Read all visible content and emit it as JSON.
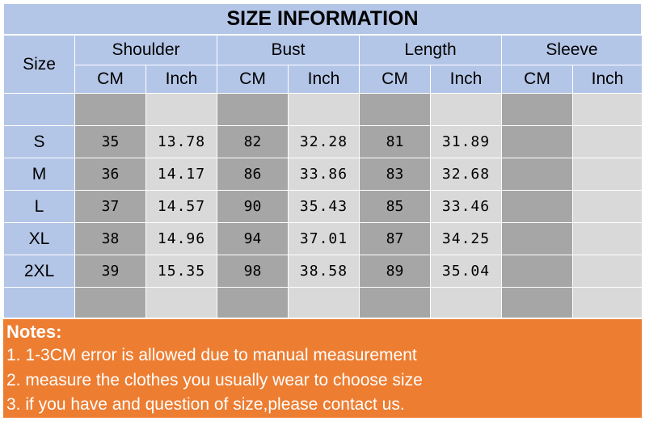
{
  "title": "SIZE INFORMATION",
  "size_label": "Size",
  "columns": [
    "Shoulder",
    "Bust",
    "Length",
    "Sleeve"
  ],
  "units": [
    "CM",
    "Inch",
    "CM",
    "Inch",
    "CM",
    "Inch",
    "CM",
    "Inch"
  ],
  "rows": [
    {
      "size": "S",
      "shoulder_cm": "35",
      "shoulder_in": "13.78",
      "bust_cm": "82",
      "bust_in": "32.28",
      "length_cm": "81",
      "length_in": "31.89"
    },
    {
      "size": "M",
      "shoulder_cm": "36",
      "shoulder_in": "14.17",
      "bust_cm": "86",
      "bust_in": "33.86",
      "length_cm": "83",
      "length_in": "32.68"
    },
    {
      "size": "L",
      "shoulder_cm": "37",
      "shoulder_in": "14.57",
      "bust_cm": "90",
      "bust_in": "35.43",
      "length_cm": "85",
      "length_in": "33.46"
    },
    {
      "size": "XL",
      "shoulder_cm": "38",
      "shoulder_in": "14.96",
      "bust_cm": "94",
      "bust_in": "37.01",
      "length_cm": "87",
      "length_in": "34.25"
    },
    {
      "size": "2XL",
      "shoulder_cm": "39",
      "shoulder_in": "15.35",
      "bust_cm": "98",
      "bust_in": "38.58",
      "length_cm": "89",
      "length_in": "35.04"
    }
  ],
  "notes": {
    "title": "Notes:",
    "lines": [
      "1. 1-3CM error is allowed due to manual measurement",
      "2. measure the clothes you usually wear to choose size",
      "3. if you have and question of size,please contact us."
    ]
  },
  "colors": {
    "header_blue": "#b4c6e7",
    "cm_gray": "#a6a6a6",
    "inch_gray": "#d9d9d9",
    "notes_orange": "#ed7d31"
  }
}
